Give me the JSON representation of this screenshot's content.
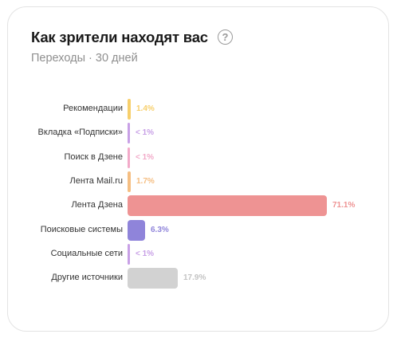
{
  "header": {
    "title": "Как зрители находят вас",
    "help_icon": "question-circle-icon",
    "subtitle": "Переходы · 30 дней"
  },
  "sources": [
    {
      "label": "Рекомендации",
      "value_text": "1.4%",
      "value": 1.4,
      "color": "#f7cf6b"
    },
    {
      "label": "Вкладка «Подписки»",
      "value_text": "< 1%",
      "value": 0.5,
      "color": "#c8a0e6"
    },
    {
      "label": "Поиск в Дзене",
      "value_text": "< 1%",
      "value": 0.5,
      "color": "#f2aac9"
    },
    {
      "label": "Лента Mail.ru",
      "value_text": "1.7%",
      "value": 1.7,
      "color": "#f5be82"
    },
    {
      "label": "Лента Дзена",
      "value_text": "71.1%",
      "value": 71.1,
      "color": "#ee9393"
    },
    {
      "label": "Поисковые системы",
      "value_text": "6.3%",
      "value": 6.3,
      "color": "#8f84da"
    },
    {
      "label": "Социальные сети",
      "value_text": "< 1%",
      "value": 0.5,
      "color": "#c8a0e6"
    },
    {
      "label": "Другие источники",
      "value_text": "17.9%",
      "value": 17.9,
      "color": "#d2d2d2"
    }
  ]
}
